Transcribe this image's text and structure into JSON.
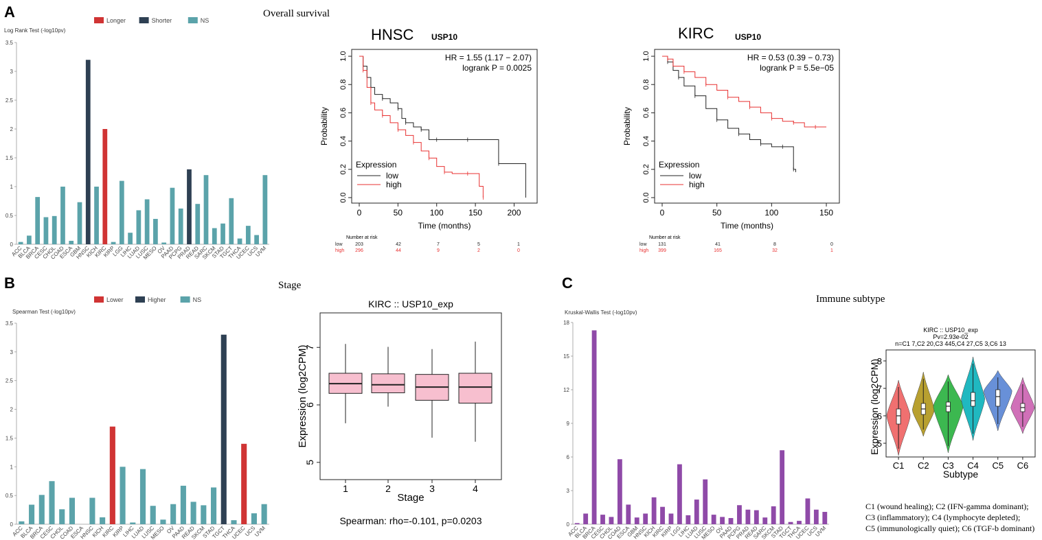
{
  "panels": {
    "A": "A",
    "B": "B",
    "C": "C"
  },
  "titles": {
    "overall_survival": "Overall survival",
    "stage": "Stage",
    "immune_subtype": "Immune subtype"
  },
  "colors": {
    "red": "#d03434",
    "navy": "#2e4053",
    "teal": "#5ba3aa",
    "purple": "#8f4aa8",
    "km_low": "#222222",
    "km_high": "#e83030",
    "box_fill": "#f7bfcf"
  },
  "chart_data": [
    {
      "id": "os_bar",
      "type": "bar",
      "ylabel": "Log Rank Test (-log10pv)",
      "legend": [
        {
          "label": "Longer",
          "color": "#d03434"
        },
        {
          "label": "Shorter",
          "color": "#2e4053"
        },
        {
          "label": "NS",
          "color": "#5ba3aa"
        }
      ],
      "ylim": [
        0,
        3.5
      ],
      "yticks": [
        "0",
        "0.5",
        "1",
        "1.5",
        "2",
        "2.5",
        "3",
        "3.5"
      ],
      "categories": [
        "ACC",
        "BLCA",
        "BRCA",
        "CESC",
        "CHOL",
        "COAD",
        "ESCA",
        "GBM",
        "HNSC",
        "KICH",
        "KIRC",
        "KIRP",
        "LGG",
        "LIHC",
        "LUAD",
        "LUSC",
        "MESO",
        "OV",
        "PAAD",
        "PCPG",
        "PRAD",
        "READ",
        "SARC",
        "SKCM",
        "STAD",
        "TGCT",
        "THCA",
        "UCEC",
        "UCS",
        "UVM"
      ],
      "values": [
        0.04,
        0.15,
        0.82,
        0.47,
        0.49,
        1.0,
        0.06,
        0.73,
        3.2,
        1.0,
        2.0,
        0.04,
        1.1,
        0.2,
        0.59,
        0.78,
        0.44,
        0.03,
        0.98,
        0.62,
        1.3,
        0.7,
        1.2,
        0.28,
        0.36,
        0.8,
        0.1,
        0.32,
        0.16,
        1.2
      ],
      "groups": [
        "NS",
        "NS",
        "NS",
        "NS",
        "NS",
        "NS",
        "NS",
        "NS",
        "Shorter",
        "NS",
        "Longer",
        "NS",
        "NS",
        "NS",
        "NS",
        "NS",
        "NS",
        "NS",
        "NS",
        "NS",
        "Shorter",
        "NS",
        "NS",
        "NS",
        "NS",
        "NS",
        "NS",
        "NS",
        "NS",
        "NS"
      ]
    },
    {
      "id": "km_hnsc",
      "type": "line",
      "title": "HNSC",
      "gene": "USP10",
      "xlabel": "Time (months)",
      "ylabel": "Probability",
      "xlim": [
        0,
        220
      ],
      "ylim": [
        0,
        1
      ],
      "xticks": [
        "0",
        "50",
        "100",
        "150",
        "200"
      ],
      "yticks": [
        "0.0",
        "0.2",
        "0.4",
        "0.6",
        "0.8",
        "1.0"
      ],
      "hr_text": "HR = 1.55 (1.17 − 2.07)",
      "p_text": "logrank P = 0.0025",
      "legend_title": "Expression",
      "series": [
        {
          "name": "low",
          "color": "#222222",
          "x": [
            0,
            5,
            10,
            15,
            20,
            30,
            40,
            50,
            55,
            60,
            70,
            80,
            90,
            100,
            120,
            140,
            160,
            180,
            215
          ],
          "y": [
            1.0,
            0.93,
            0.85,
            0.78,
            0.73,
            0.7,
            0.67,
            0.63,
            0.56,
            0.53,
            0.5,
            0.48,
            0.41,
            0.41,
            0.41,
            0.41,
            0.41,
            0.24,
            0.0
          ]
        },
        {
          "name": "high",
          "color": "#e83030",
          "x": [
            0,
            5,
            10,
            15,
            20,
            30,
            40,
            50,
            60,
            70,
            80,
            90,
            100,
            110,
            120,
            140,
            155,
            160
          ],
          "y": [
            1.0,
            0.9,
            0.78,
            0.67,
            0.62,
            0.58,
            0.53,
            0.48,
            0.44,
            0.39,
            0.33,
            0.28,
            0.22,
            0.18,
            0.17,
            0.17,
            0.08,
            0.0
          ]
        }
      ],
      "risk_title": "Number at risk",
      "risk": [
        {
          "name": "low",
          "color": "#222222",
          "values": [
            "203",
            "42",
            "7",
            "5",
            "1"
          ]
        },
        {
          "name": "high",
          "color": "#e83030",
          "values": [
            "296",
            "44",
            "9",
            "2",
            "0"
          ]
        }
      ]
    },
    {
      "id": "km_kirc",
      "type": "line",
      "title": "KIRC",
      "gene": "USP10",
      "xlabel": "Time (months)",
      "ylabel": "Probability",
      "xlim": [
        0,
        155
      ],
      "ylim": [
        0,
        1
      ],
      "xticks": [
        "0",
        "50",
        "100",
        "150"
      ],
      "yticks": [
        "0.0",
        "0.2",
        "0.4",
        "0.6",
        "0.8",
        "1.0"
      ],
      "hr_text": "HR = 0.53 (0.39 − 0.73)",
      "p_text": "logrank P = 5.5e−05",
      "legend_title": "Expression",
      "series": [
        {
          "name": "low",
          "color": "#222222",
          "x": [
            0,
            5,
            10,
            15,
            20,
            30,
            40,
            50,
            60,
            70,
            80,
            90,
            100,
            110,
            115,
            120,
            122
          ],
          "y": [
            1.0,
            0.96,
            0.9,
            0.85,
            0.79,
            0.72,
            0.63,
            0.55,
            0.49,
            0.45,
            0.41,
            0.38,
            0.36,
            0.36,
            0.36,
            0.2,
            0.18
          ]
        },
        {
          "name": "high",
          "color": "#e83030",
          "x": [
            0,
            5,
            10,
            20,
            30,
            40,
            50,
            60,
            70,
            80,
            90,
            100,
            110,
            120,
            130,
            140,
            150
          ],
          "y": [
            1.0,
            0.98,
            0.93,
            0.89,
            0.85,
            0.8,
            0.76,
            0.71,
            0.68,
            0.64,
            0.6,
            0.56,
            0.54,
            0.53,
            0.5,
            0.5,
            0.5
          ]
        }
      ],
      "risk_title": "Number at risk",
      "risk": [
        {
          "name": "low",
          "color": "#222222",
          "values": [
            "131",
            "41",
            "8",
            "0"
          ]
        },
        {
          "name": "high",
          "color": "#e83030",
          "values": [
            "399",
            "165",
            "32",
            "1"
          ]
        }
      ]
    },
    {
      "id": "stage_bar",
      "type": "bar",
      "ylabel": "Spearman Test (-log10pv)",
      "legend": [
        {
          "label": "Lower",
          "color": "#d03434"
        },
        {
          "label": "Higher",
          "color": "#2e4053"
        },
        {
          "label": "NS",
          "color": "#5ba3aa"
        }
      ],
      "ylim": [
        0,
        3.5
      ],
      "yticks": [
        "0",
        "0.5",
        "1",
        "1.5",
        "2",
        "2.5",
        "3",
        "3.5"
      ],
      "categories": [
        "ACC",
        "BLCA",
        "BRCA",
        "CESC",
        "CHOL",
        "COAD",
        "ESCA",
        "HNSC",
        "KICH",
        "KIRC",
        "KIRP",
        "LIHC",
        "LUAD",
        "LUSC",
        "MESO",
        "OV",
        "PAAD",
        "READ",
        "SKCM",
        "STAD",
        "TGCT",
        "THCA",
        "UCEC",
        "UCS",
        "UVM"
      ],
      "values": [
        0.05,
        0.34,
        0.51,
        0.75,
        0.26,
        0.46,
        0.0,
        0.46,
        0.12,
        1.7,
        1.0,
        0.03,
        0.96,
        0.32,
        0.08,
        0.35,
        0.67,
        0.39,
        0.33,
        0.64,
        3.3,
        0.07,
        1.4,
        0.19,
        0.35
      ],
      "groups": [
        "NS",
        "NS",
        "NS",
        "NS",
        "NS",
        "NS",
        "NS",
        "NS",
        "NS",
        "Lower",
        "NS",
        "NS",
        "NS",
        "NS",
        "NS",
        "NS",
        "NS",
        "NS",
        "NS",
        "NS",
        "Higher",
        "NS",
        "Lower",
        "NS",
        "NS"
      ]
    },
    {
      "id": "stage_box",
      "type": "box",
      "title": "KIRC  ::  USP10_exp",
      "xlabel": "Stage",
      "ylabel": "Expression (log2CPM)",
      "ylim": [
        4.7,
        7.6
      ],
      "yticks": [
        "5",
        "6",
        "7"
      ],
      "categories": [
        "1",
        "2",
        "3",
        "4"
      ],
      "boxes": [
        {
          "min": 5.68,
          "q1": 6.2,
          "median": 6.37,
          "q3": 6.55,
          "max": 7.06
        },
        {
          "min": 5.97,
          "q1": 6.21,
          "median": 6.35,
          "q3": 6.54,
          "max": 7.01
        },
        {
          "min": 5.43,
          "q1": 6.08,
          "median": 6.31,
          "q3": 6.53,
          "max": 6.97
        },
        {
          "min": 5.36,
          "q1": 6.03,
          "median": 6.31,
          "q3": 6.55,
          "max": 7.1
        }
      ],
      "caption": "Spearman: rho=-0.101, p=0.0203"
    },
    {
      "id": "immune_bar",
      "type": "bar",
      "ylabel": "Kruskal-Wallis Test (-log10pv)",
      "ylim": [
        0,
        18
      ],
      "yticks": [
        "0",
        "3",
        "6",
        "9",
        "12",
        "15",
        "18"
      ],
      "categories": [
        "ACC",
        "BLCA",
        "BRCA",
        "CESC",
        "CHOL",
        "COAD",
        "ESCA",
        "GBM",
        "HNSC",
        "KICH",
        "KIRC",
        "KIRP",
        "LGG",
        "LIHC",
        "LUAD",
        "LUSC",
        "MESO",
        "OV",
        "PAAD",
        "PCPG",
        "PRAD",
        "READ",
        "SARC",
        "SKCM",
        "STAD",
        "TGCT",
        "THCA",
        "UCEC",
        "UCS",
        "UVM"
      ],
      "values": [
        0.1,
        0.95,
        17.3,
        0.85,
        0.65,
        5.8,
        1.75,
        0.6,
        0.95,
        2.4,
        1.55,
        0.95,
        5.35,
        0.8,
        2.2,
        4.0,
        0.85,
        0.65,
        0.55,
        1.7,
        1.3,
        1.25,
        0.6,
        1.6,
        6.6,
        0.2,
        0.3,
        2.3,
        1.3,
        1.1
      ]
    },
    {
      "id": "immune_violin",
      "type": "violin",
      "title": "KIRC :: USP10_exp",
      "pv_text": "Pv=2.93e-02",
      "n_text": "n=C1 7,C2 20,C3 445,C4 27,C5 3,C6 13",
      "xlabel": "Subtype",
      "ylabel": "Expression (log2CPM)",
      "ylim": [
        4.5,
        8.4
      ],
      "yticks": [
        "5",
        "6",
        "7",
        "8"
      ],
      "categories": [
        "C1",
        "C2",
        "C3",
        "C4",
        "C5",
        "C6"
      ],
      "colors": [
        "#f07070",
        "#b8a030",
        "#3cb850",
        "#20b8c0",
        "#6890d8",
        "#d070b8"
      ],
      "violins": [
        {
          "min": 4.55,
          "max": 7.3,
          "q1": 5.7,
          "median": 6.0,
          "q3": 6.25,
          "peak": 6.0,
          "width": 0.3
        },
        {
          "min": 5.25,
          "max": 7.6,
          "q1": 6.05,
          "median": 6.25,
          "q3": 6.45,
          "peak": 6.2,
          "width": 0.28
        },
        {
          "min": 4.65,
          "max": 7.5,
          "q1": 6.15,
          "median": 6.35,
          "q3": 6.5,
          "peak": 6.35,
          "width": 0.38
        },
        {
          "min": 5.1,
          "max": 8.15,
          "q1": 6.35,
          "median": 6.55,
          "q3": 6.85,
          "peak": 6.6,
          "width": 0.3
        },
        {
          "min": 5.45,
          "max": 7.65,
          "q1": 6.35,
          "median": 6.7,
          "q3": 6.95,
          "peak": 6.9,
          "width": 0.36
        },
        {
          "min": 5.35,
          "max": 7.4,
          "q1": 6.15,
          "median": 6.3,
          "q3": 6.45,
          "peak": 6.3,
          "width": 0.3
        }
      ],
      "notes": [
        "C1 (wound healing); C2 (IFN-gamma dominant);",
        "C3 (inflammatory); C4 (lymphocyte depleted);",
        "C5 (immunologically quiet); C6 (TGF-b dominant)"
      ]
    }
  ]
}
